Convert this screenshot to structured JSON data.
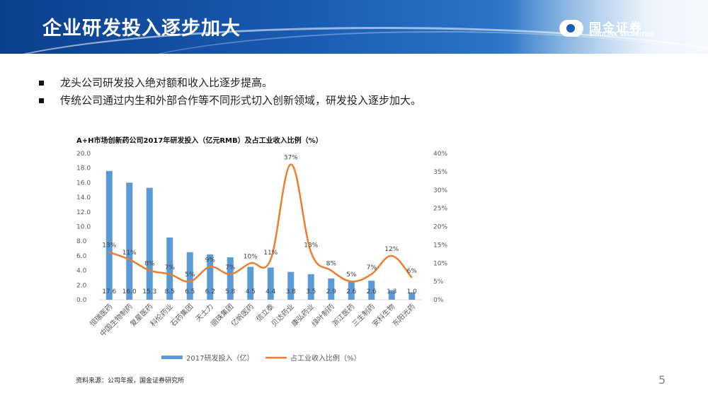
{
  "header": {
    "title": "企业研发投入逐步加大",
    "logo_cn": "国金证券",
    "logo_en": "SINOLINK SECURITIES"
  },
  "bullets": [
    "龙头公司研发投入绝对额和收入比逐步提高。",
    "传统公司通过内生和外部合作等不同形式切入创新领域，研发投入逐步加大。"
  ],
  "colors": {
    "bar": "#5b9bd5",
    "line": "#ed7d31",
    "header": "#1a5db5"
  },
  "chart_data": {
    "type": "bar",
    "title": "A+H市场创新药公司2017年研发投入（亿元RMB）及占工业收入比例（%）",
    "categories": [
      "恒瑞医药",
      "中国生物制药",
      "复星医药",
      "科伦药业",
      "石药集团",
      "天士力",
      "丽珠集团",
      "亿帆医药",
      "信立泰",
      "贝达药业",
      "康弘药业",
      "绿叶制药",
      "浙江医药",
      "三生制药",
      "安科生物",
      "东阳光药"
    ],
    "series": [
      {
        "name": "2017研发投入（亿）",
        "type": "bar",
        "axis": "left",
        "values": [
          17.6,
          16.0,
          15.3,
          8.5,
          6.5,
          6.2,
          5.8,
          4.5,
          4.4,
          3.8,
          3.5,
          2.9,
          2.6,
          2.6,
          1.3,
          1.0
        ],
        "labels": [
          "17.6",
          "16.0",
          "15.3",
          "8.5",
          "6.5",
          "6.2",
          "5.8",
          "4.5",
          "4.4",
          "3.8",
          "3.5",
          "2.9",
          "2.6",
          "2.6",
          "1.3",
          "1.0"
        ]
      },
      {
        "name": "占工业收入比例（%）",
        "type": "line",
        "axis": "right",
        "values": [
          13,
          11,
          8,
          7,
          5,
          9,
          7,
          10,
          11,
          37,
          13,
          8,
          5,
          7,
          12,
          6
        ],
        "labels": [
          "13%",
          "11%",
          "8%",
          "7%",
          "5%",
          "9%",
          "7%",
          "10%",
          "11%",
          "37%",
          "13%",
          "8%",
          "5%",
          "7%",
          "12%",
          "6%"
        ]
      }
    ],
    "y_left": {
      "range": [
        0,
        20
      ],
      "ticks": [
        "0.0",
        "2.0",
        "4.0",
        "6.0",
        "8.0",
        "10.0",
        "12.0",
        "14.0",
        "16.0",
        "18.0",
        "20.0"
      ]
    },
    "y_right": {
      "range": [
        0,
        40
      ],
      "ticks": [
        "0%",
        "5%",
        "10%",
        "15%",
        "20%",
        "25%",
        "30%",
        "35%",
        "40%"
      ]
    },
    "legend_position": "bottom",
    "grid": false
  },
  "source": "资料来源：公司年报，国金证券研究所",
  "page_number": "5"
}
